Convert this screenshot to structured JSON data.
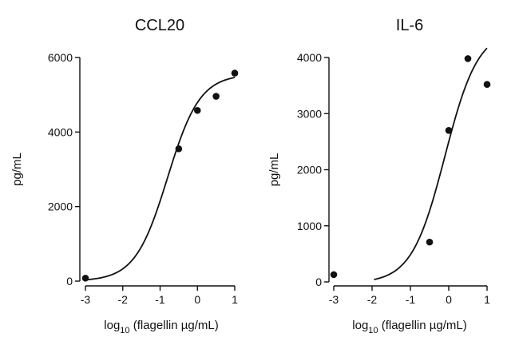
{
  "chart_data": [
    {
      "type": "scatter",
      "title": "CCL20",
      "xlabel_prefix": "log",
      "xlabel_sub": "10",
      "xlabel_rest": " (flagellin µg/mL)",
      "ylabel": "pg/mL",
      "xlim": [
        -3,
        1
      ],
      "ylim": [
        0,
        6000
      ],
      "xticks": [
        -3,
        -2,
        -1,
        0,
        1
      ],
      "yticks": [
        0,
        2000,
        4000,
        6000
      ],
      "points": [
        {
          "x": -3,
          "y": 80
        },
        {
          "x": -0.5,
          "y": 3550
        },
        {
          "x": 0,
          "y": 4580
        },
        {
          "x": 0.5,
          "y": 4960
        },
        {
          "x": 1,
          "y": 5580
        }
      ],
      "fit": {
        "type": "sigmoid",
        "bottom": 0,
        "top": 5550,
        "ec50_log": -0.8,
        "hill": 1.0,
        "x_range": [
          -3,
          1
        ]
      }
    },
    {
      "type": "scatter",
      "title": "IL-6",
      "xlabel_prefix": "log",
      "xlabel_sub": "10",
      "xlabel_rest": " (flagellin µg/mL)",
      "ylabel": "pg/mL",
      "xlim": [
        -3,
        1
      ],
      "ylim": [
        0,
        4000
      ],
      "xticks": [
        -3,
        -2,
        -1,
        0,
        1
      ],
      "yticks": [
        0,
        1000,
        2000,
        3000,
        4000
      ],
      "points": [
        {
          "x": -3,
          "y": 130
        },
        {
          "x": -0.5,
          "y": 710
        },
        {
          "x": 0,
          "y": 2700
        },
        {
          "x": 0.5,
          "y": 3980
        },
        {
          "x": 1,
          "y": 3520
        }
      ],
      "fit": {
        "type": "sigmoid",
        "bottom": -20,
        "top": 4500,
        "ec50_log": -0.1,
        "hill": 1.0,
        "x_range": [
          -1.95,
          1
        ]
      }
    }
  ]
}
